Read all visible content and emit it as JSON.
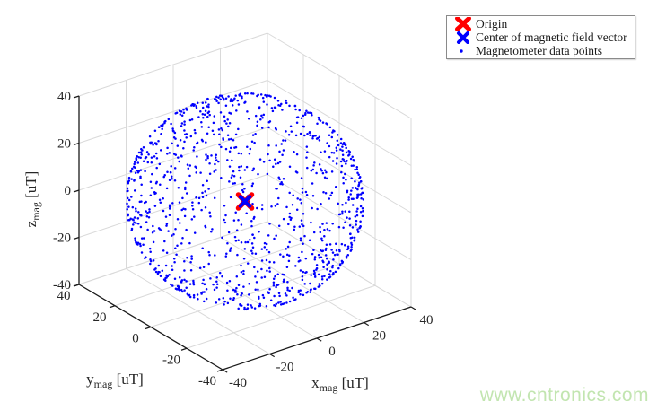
{
  "page": {
    "background": "#ffffff"
  },
  "watermark": {
    "text": "www.cntronics.com",
    "color": "#c2e5b0"
  },
  "chart_data": {
    "type": "scatter",
    "subtype": "3d-scatter",
    "title": "",
    "view": {
      "azimuth_deg": -37.5,
      "elevation_deg": 30,
      "grid": true
    },
    "axes": {
      "x": {
        "label_base": "x",
        "label_sub": "mag",
        "label_unit": " [uT]",
        "range": [
          -40,
          40
        ],
        "ticks": [
          -40,
          -20,
          0,
          20,
          40
        ]
      },
      "y": {
        "label_base": "y",
        "label_sub": "mag",
        "label_unit": " [uT]",
        "range": [
          -40,
          40
        ],
        "ticks": [
          -40,
          -20,
          0,
          20,
          40
        ]
      },
      "z": {
        "label_base": "z",
        "label_sub": "mag",
        "label_unit": " [uT]",
        "range": [
          -40,
          40
        ],
        "ticks": [
          -40,
          -20,
          0,
          20,
          40
        ]
      }
    },
    "legend": {
      "position": "top-right",
      "entries": [
        {
          "label": "Origin",
          "marker": "x-bold",
          "color": "#ff0000"
        },
        {
          "label": "Center of magnetic field vector",
          "marker": "x",
          "color": "#0000ff"
        },
        {
          "label": "Magnetometer data points",
          "marker": "dot",
          "color": "#0000ff"
        }
      ]
    },
    "series": [
      {
        "name": "Origin",
        "marker": "x-bold",
        "color": "#ff0000",
        "points": [
          [
            0,
            0,
            0
          ]
        ]
      },
      {
        "name": "Center of magnetic field vector",
        "marker": "x",
        "color": "#0000ff",
        "points": [
          [
            0,
            0,
            0
          ]
        ]
      },
      {
        "name": "Magnetometer data points",
        "marker": "dot",
        "color": "#0000ff",
        "point_cloud": {
          "distribution": "uniform-on-sphere-surface",
          "center": [
            0,
            0,
            0
          ],
          "radius": 40,
          "count": 1150
        }
      }
    ],
    "colors": {
      "grid": "#d9d9d9",
      "axis": "#1a1a1a",
      "tick_label": "#262626"
    }
  }
}
